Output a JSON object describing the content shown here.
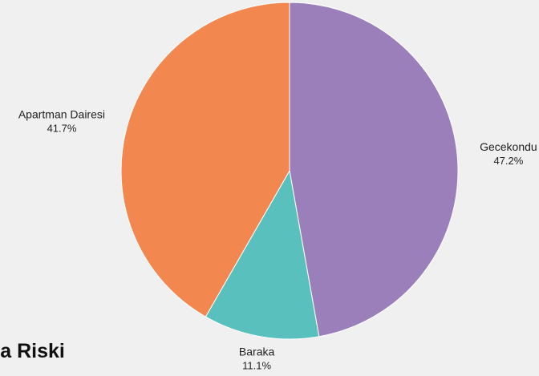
{
  "chart_data": {
    "type": "pie",
    "title": "",
    "categories": [
      "Gecekondu",
      "Baraka",
      "Apartman Dairesi"
    ],
    "values": [
      47.2,
      11.1,
      41.7
    ],
    "value_labels": [
      "47.2%",
      "11.1%",
      "41.7%"
    ],
    "colors": [
      "#9b7fba",
      "#59c0be",
      "#f2874f"
    ],
    "start_angle_deg": 0,
    "direction": "clockwise",
    "legend": "none"
  },
  "page": {
    "cut_off_text": "ma Riski"
  }
}
